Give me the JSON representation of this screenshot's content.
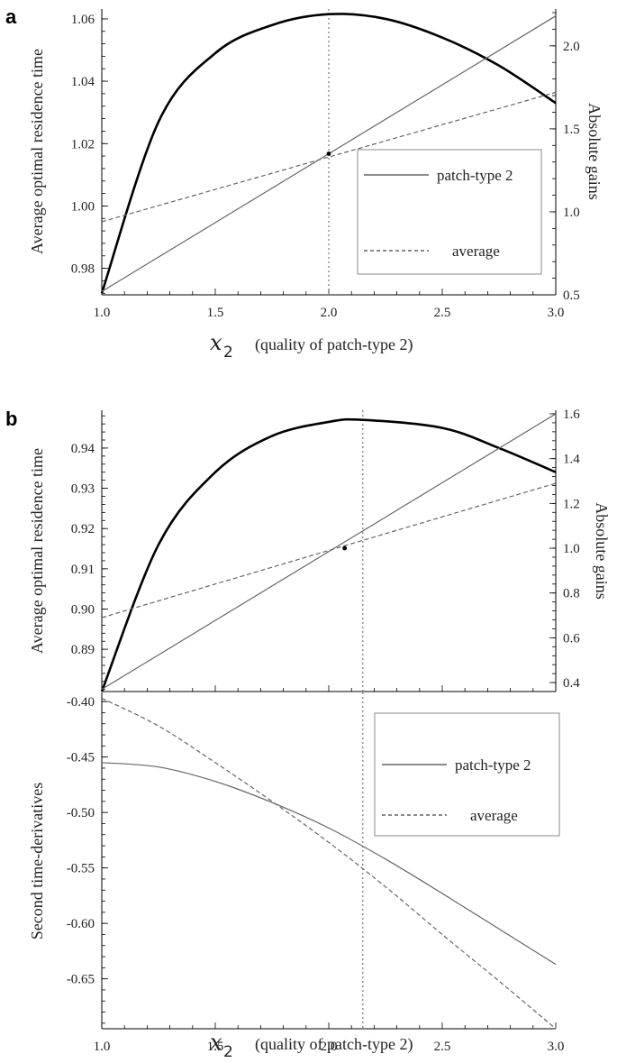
{
  "panels": {
    "a_label": "a",
    "b_label": "b"
  },
  "x_axis": {
    "symbol": "x",
    "subscript": "2",
    "label": "(quality of patch-type 2)",
    "ticks": [
      "1.0",
      "1.5",
      "2.0",
      "2.5",
      "3.0"
    ]
  },
  "legend": {
    "solid": "patch-type 2",
    "dashed": "average"
  },
  "colors": {
    "thick": "#000000",
    "thin": "#666666",
    "dotted": "#777777"
  },
  "chart_data": [
    {
      "id": "a",
      "type": "line",
      "title": "",
      "xlabel": "x2 (quality of patch-type 2)",
      "xlim": [
        1.0,
        3.0
      ],
      "left_axis": {
        "label": "Average optimal residence time",
        "ylim": [
          0.9715,
          1.062
        ],
        "ticks": [
          "0.98",
          "1.00",
          "1.02",
          "1.04",
          "1.06"
        ]
      },
      "right_axis": {
        "label": "Absolute gains",
        "ylim": [
          0.5,
          2.2
        ],
        "ticks": [
          "0.5",
          "1.0",
          "1.5",
          "2.0"
        ]
      },
      "series": [
        {
          "axis": "left",
          "style": "thick",
          "x": [
            1.0,
            1.25,
            1.5,
            1.75,
            2.0,
            2.25,
            2.5,
            2.75,
            3.0
          ],
          "values": [
            0.972,
            1.027,
            1.049,
            1.058,
            1.0615,
            1.06,
            1.054,
            1.045,
            1.033
          ]
        },
        {
          "name": "patch-type 2",
          "axis": "right",
          "style": "solid",
          "x": [
            1.0,
            3.0
          ],
          "values": [
            0.52,
            2.18
          ]
        },
        {
          "name": "average",
          "axis": "right",
          "style": "dashed",
          "x": [
            1.0,
            3.0
          ],
          "values": [
            0.94,
            1.72
          ]
        }
      ],
      "vline_x": 2.0,
      "intersection": {
        "x": 2.0,
        "y_right": 1.35
      },
      "legend_position": "center-right"
    },
    {
      "id": "b-top",
      "type": "line",
      "title": "",
      "xlim": [
        1.0,
        3.0
      ],
      "left_axis": {
        "label": "Average optimal residence time",
        "ylim": [
          0.8795,
          0.9485
        ],
        "ticks": [
          "0.89",
          "0.90",
          "0.91",
          "0.92",
          "0.93",
          "0.94"
        ]
      },
      "right_axis": {
        "label": "Absolute gains",
        "ylim": [
          0.36,
          1.6
        ],
        "ticks": [
          "0.4",
          "0.6",
          "0.8",
          "1.0",
          "1.2",
          "1.4",
          "1.6"
        ]
      },
      "series": [
        {
          "axis": "left",
          "style": "thick",
          "x": [
            1.0,
            1.25,
            1.5,
            1.75,
            2.0,
            2.15,
            2.5,
            2.75,
            3.0
          ],
          "values": [
            0.8795,
            0.916,
            0.934,
            0.943,
            0.9465,
            0.947,
            0.945,
            0.94,
            0.934
          ]
        },
        {
          "name": "patch-type 2",
          "axis": "right",
          "style": "solid",
          "x": [
            1.0,
            3.0
          ],
          "values": [
            0.37,
            1.6
          ]
        },
        {
          "name": "average",
          "axis": "right",
          "style": "dashed",
          "x": [
            1.0,
            3.0
          ],
          "values": [
            0.69,
            1.29
          ]
        }
      ],
      "vline_x": 2.15,
      "intersection": {
        "x": 2.07,
        "y_right": 1.0
      }
    },
    {
      "id": "b-bottom",
      "type": "line",
      "title": "",
      "xlabel": "x2 (quality of patch-type 2)",
      "xlim": [
        1.0,
        3.0
      ],
      "left_axis": {
        "label": "Second time-derivatives",
        "ylim": [
          -0.695,
          -0.395
        ],
        "ticks": [
          "-0.40",
          "-0.45",
          "-0.50",
          "-0.55",
          "-0.60",
          "-0.65"
        ]
      },
      "series": [
        {
          "name": "patch-type 2",
          "style": "solid",
          "x": [
            1.0,
            1.25,
            1.5,
            1.75,
            2.0,
            2.25,
            2.5,
            2.75,
            3.0
          ],
          "values": [
            -0.455,
            -0.459,
            -0.472,
            -0.491,
            -0.514,
            -0.542,
            -0.573,
            -0.605,
            -0.637
          ]
        },
        {
          "name": "average",
          "style": "dashed",
          "x": [
            1.0,
            1.25,
            1.5,
            1.75,
            2.0,
            2.25,
            2.5,
            2.75,
            3.0
          ],
          "values": [
            -0.397,
            -0.422,
            -0.455,
            -0.49,
            -0.527,
            -0.567,
            -0.61,
            -0.652,
            -0.695
          ]
        }
      ],
      "vline_x": 2.15,
      "legend_position": "top-right"
    }
  ]
}
